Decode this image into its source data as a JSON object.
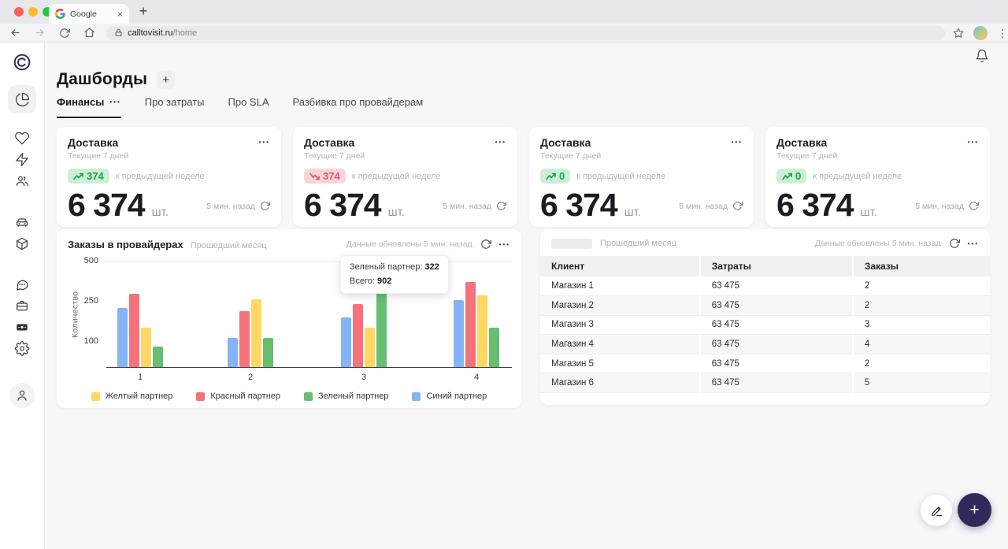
{
  "browser": {
    "tab_title": "Google",
    "url_host": "calltovisit.ru",
    "url_path": "/home"
  },
  "sidebar": {
    "items": [
      "logo",
      "dashboards",
      "favorites",
      "energy",
      "users",
      "transport",
      "packages",
      "chats",
      "cases",
      "payments",
      "settings",
      "profile"
    ],
    "active_item": "dashboards"
  },
  "header": {
    "title": "Дашборды",
    "add_label": "+"
  },
  "tabs": [
    {
      "label": "Финансы",
      "active": true
    },
    {
      "label": "Про затраты",
      "active": false
    },
    {
      "label": "Про SLA",
      "active": false
    },
    {
      "label": "Разбивка про провайдерам",
      "active": false
    }
  ],
  "kpi_cards": [
    {
      "title": "Доставка",
      "subtitle": "Текущие 7 дней",
      "delta": "374",
      "delta_dir": "up",
      "delta_note": "к предыдущей неделе",
      "value": "6 374",
      "unit": "шт.",
      "updated": "5 мин. назад"
    },
    {
      "title": "Доставка",
      "subtitle": "Текущие 7 дней",
      "delta": "374",
      "delta_dir": "down",
      "delta_note": "к предыдущей неделе",
      "value": "6 374",
      "unit": "шт.",
      "updated": "5 мин. назад"
    },
    {
      "title": "Доставка",
      "subtitle": "Текущие 7 дней",
      "delta": "0",
      "delta_dir": "up",
      "delta_note": "к предыдущей неделе",
      "value": "6 374",
      "unit": "шт.",
      "updated": "5 мин. назад"
    },
    {
      "title": "Доставка",
      "subtitle": "Текущие 7 дней",
      "delta": "0",
      "delta_dir": "up",
      "delta_note": "к предыдущей неделе",
      "value": "6 374",
      "unit": "шт.",
      "updated": "5 мин. назад"
    }
  ],
  "chart_card": {
    "title": "Заказы в провайдерах",
    "subtitle": "Прошедший месяц",
    "updated": "Данные обновлены 5 мин. назад",
    "tooltip": {
      "partner_label": "Зеленый партнер:",
      "partner_value": "322",
      "total_label": "Всего:",
      "total_value": "902"
    }
  },
  "chart_data": {
    "type": "bar",
    "title": "Заказы в провайдерах",
    "xlabel": "",
    "ylabel": "Количество",
    "categories": [
      "1",
      "2",
      "3",
      "4"
    ],
    "series": [
      {
        "name": "Синий партнер",
        "color": "#82b4f6",
        "values": [
          225,
          112,
          190,
          255
        ]
      },
      {
        "name": "Красный партнер",
        "color": "#f5727b",
        "values": [
          295,
          212,
          240,
          370
        ]
      },
      {
        "name": "Желтый партнер",
        "color": "#ffd763",
        "values": [
          150,
          260,
          150,
          285
        ]
      },
      {
        "name": "Зеленый партнер",
        "color": "#66be70",
        "values": [
          80,
          112,
          322,
          150
        ]
      }
    ],
    "legend_order": [
      "Желтый партнер",
      "Красный партнер",
      "Зеленый партнер",
      "Синий партнер"
    ],
    "legend_position": "bottom",
    "yticks": [
      500,
      250,
      100
    ],
    "ylim": [
      0,
      500
    ],
    "grid": "top-line-only",
    "annotation": {
      "group": "3",
      "series": "Зеленый партнер",
      "value": 322,
      "group_total": 902
    }
  },
  "table_card": {
    "subtitle": "Прошедший месяц",
    "updated": "Данные обновлены 5 мин. назад",
    "columns": [
      "Клиент",
      "Затраты",
      "Заказы"
    ],
    "rows": [
      [
        "Магазин 1",
        "63 475",
        "2"
      ],
      [
        "Магазин 2",
        "63 475",
        "2"
      ],
      [
        "Магазин 3",
        "63 475",
        "3"
      ],
      [
        "Магазин 4",
        "63 475",
        "4"
      ],
      [
        "Магазин 5",
        "63 475",
        "2"
      ],
      [
        "Магазин 6",
        "63 475",
        "5"
      ]
    ]
  },
  "fab": {
    "add_label": "+"
  },
  "icons": {
    "kebab": "•••",
    "close": "×",
    "new_tab": "+"
  },
  "colors": {
    "accent_navy": "#2f2a5c",
    "badge_up_bg": "#cbefd6",
    "badge_up_text": "#1f9c49",
    "badge_down_bg": "#fad4d9",
    "badge_down_text": "#e25862",
    "bar_blue": "#82b4f6",
    "bar_red": "#f5727b",
    "bar_yellow": "#ffd763",
    "bar_green": "#66be70"
  }
}
